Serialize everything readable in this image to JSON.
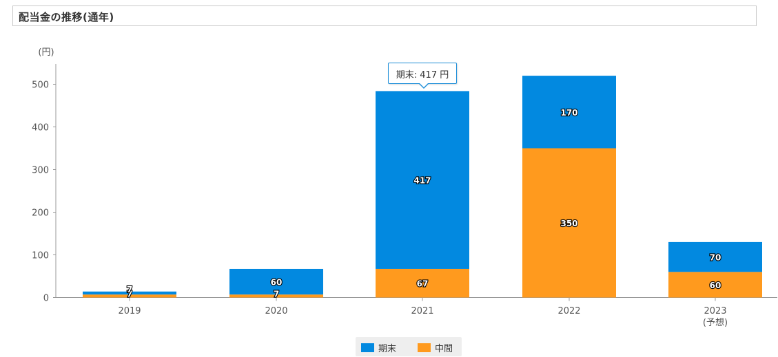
{
  "header": {
    "title": "配当金の推移(通年)"
  },
  "chart_data": {
    "type": "bar",
    "stacked": true,
    "unit_label": "(円)",
    "categories": [
      "2019",
      "2020",
      "2021",
      "2022",
      "2023\n(予想)"
    ],
    "series": [
      {
        "name": "中間",
        "color": "#ff9a1e",
        "values": [
          7,
          7,
          67,
          350,
          60
        ]
      },
      {
        "name": "期末",
        "color": "#0289e0",
        "values": [
          7,
          60,
          417,
          170,
          70
        ]
      }
    ],
    "yticks": [
      0,
      100,
      200,
      300,
      400,
      500
    ],
    "ylim": [
      0,
      550
    ],
    "legend": "bottom-center",
    "grid": false
  },
  "tooltip": {
    "text": "期末: 417 円"
  },
  "legend": {
    "items": [
      "期末",
      "中間"
    ]
  }
}
